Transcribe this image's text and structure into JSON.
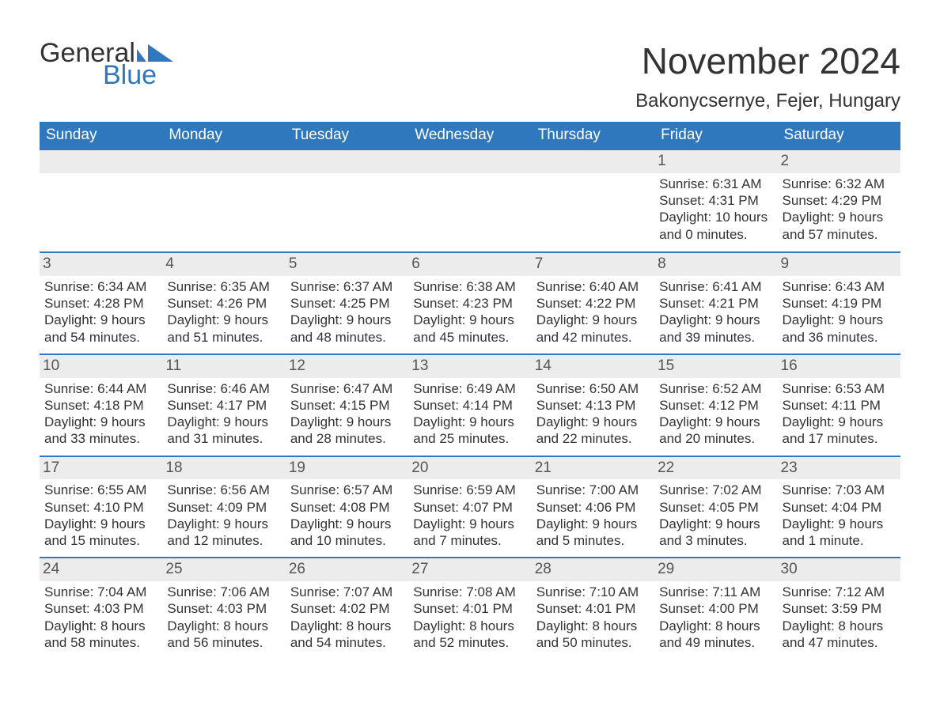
{
  "brand": {
    "line1": "General",
    "line2": "Blue"
  },
  "colors": {
    "accent": "#2f78bd",
    "header_text": "#ffffff",
    "daynum_bg": "#ececec",
    "text": "#333333",
    "background": "#ffffff"
  },
  "title": "November 2024",
  "location": "Bakonycsernye, Fejer, Hungary",
  "days_of_week": [
    "Sunday",
    "Monday",
    "Tuesday",
    "Wednesday",
    "Thursday",
    "Friday",
    "Saturday"
  ],
  "weeks": [
    [
      {
        "empty": true
      },
      {
        "empty": true
      },
      {
        "empty": true
      },
      {
        "empty": true
      },
      {
        "empty": true
      },
      {
        "n": "1",
        "sunrise": "Sunrise: 6:31 AM",
        "sunset": "Sunset: 4:31 PM",
        "d1": "Daylight: 10 hours",
        "d2": "and 0 minutes."
      },
      {
        "n": "2",
        "sunrise": "Sunrise: 6:32 AM",
        "sunset": "Sunset: 4:29 PM",
        "d1": "Daylight: 9 hours",
        "d2": "and 57 minutes."
      }
    ],
    [
      {
        "n": "3",
        "sunrise": "Sunrise: 6:34 AM",
        "sunset": "Sunset: 4:28 PM",
        "d1": "Daylight: 9 hours",
        "d2": "and 54 minutes."
      },
      {
        "n": "4",
        "sunrise": "Sunrise: 6:35 AM",
        "sunset": "Sunset: 4:26 PM",
        "d1": "Daylight: 9 hours",
        "d2": "and 51 minutes."
      },
      {
        "n": "5",
        "sunrise": "Sunrise: 6:37 AM",
        "sunset": "Sunset: 4:25 PM",
        "d1": "Daylight: 9 hours",
        "d2": "and 48 minutes."
      },
      {
        "n": "6",
        "sunrise": "Sunrise: 6:38 AM",
        "sunset": "Sunset: 4:23 PM",
        "d1": "Daylight: 9 hours",
        "d2": "and 45 minutes."
      },
      {
        "n": "7",
        "sunrise": "Sunrise: 6:40 AM",
        "sunset": "Sunset: 4:22 PM",
        "d1": "Daylight: 9 hours",
        "d2": "and 42 minutes."
      },
      {
        "n": "8",
        "sunrise": "Sunrise: 6:41 AM",
        "sunset": "Sunset: 4:21 PM",
        "d1": "Daylight: 9 hours",
        "d2": "and 39 minutes."
      },
      {
        "n": "9",
        "sunrise": "Sunrise: 6:43 AM",
        "sunset": "Sunset: 4:19 PM",
        "d1": "Daylight: 9 hours",
        "d2": "and 36 minutes."
      }
    ],
    [
      {
        "n": "10",
        "sunrise": "Sunrise: 6:44 AM",
        "sunset": "Sunset: 4:18 PM",
        "d1": "Daylight: 9 hours",
        "d2": "and 33 minutes."
      },
      {
        "n": "11",
        "sunrise": "Sunrise: 6:46 AM",
        "sunset": "Sunset: 4:17 PM",
        "d1": "Daylight: 9 hours",
        "d2": "and 31 minutes."
      },
      {
        "n": "12",
        "sunrise": "Sunrise: 6:47 AM",
        "sunset": "Sunset: 4:15 PM",
        "d1": "Daylight: 9 hours",
        "d2": "and 28 minutes."
      },
      {
        "n": "13",
        "sunrise": "Sunrise: 6:49 AM",
        "sunset": "Sunset: 4:14 PM",
        "d1": "Daylight: 9 hours",
        "d2": "and 25 minutes."
      },
      {
        "n": "14",
        "sunrise": "Sunrise: 6:50 AM",
        "sunset": "Sunset: 4:13 PM",
        "d1": "Daylight: 9 hours",
        "d2": "and 22 minutes."
      },
      {
        "n": "15",
        "sunrise": "Sunrise: 6:52 AM",
        "sunset": "Sunset: 4:12 PM",
        "d1": "Daylight: 9 hours",
        "d2": "and 20 minutes."
      },
      {
        "n": "16",
        "sunrise": "Sunrise: 6:53 AM",
        "sunset": "Sunset: 4:11 PM",
        "d1": "Daylight: 9 hours",
        "d2": "and 17 minutes."
      }
    ],
    [
      {
        "n": "17",
        "sunrise": "Sunrise: 6:55 AM",
        "sunset": "Sunset: 4:10 PM",
        "d1": "Daylight: 9 hours",
        "d2": "and 15 minutes."
      },
      {
        "n": "18",
        "sunrise": "Sunrise: 6:56 AM",
        "sunset": "Sunset: 4:09 PM",
        "d1": "Daylight: 9 hours",
        "d2": "and 12 minutes."
      },
      {
        "n": "19",
        "sunrise": "Sunrise: 6:57 AM",
        "sunset": "Sunset: 4:08 PM",
        "d1": "Daylight: 9 hours",
        "d2": "and 10 minutes."
      },
      {
        "n": "20",
        "sunrise": "Sunrise: 6:59 AM",
        "sunset": "Sunset: 4:07 PM",
        "d1": "Daylight: 9 hours",
        "d2": "and 7 minutes."
      },
      {
        "n": "21",
        "sunrise": "Sunrise: 7:00 AM",
        "sunset": "Sunset: 4:06 PM",
        "d1": "Daylight: 9 hours",
        "d2": "and 5 minutes."
      },
      {
        "n": "22",
        "sunrise": "Sunrise: 7:02 AM",
        "sunset": "Sunset: 4:05 PM",
        "d1": "Daylight: 9 hours",
        "d2": "and 3 minutes."
      },
      {
        "n": "23",
        "sunrise": "Sunrise: 7:03 AM",
        "sunset": "Sunset: 4:04 PM",
        "d1": "Daylight: 9 hours",
        "d2": "and 1 minute."
      }
    ],
    [
      {
        "n": "24",
        "sunrise": "Sunrise: 7:04 AM",
        "sunset": "Sunset: 4:03 PM",
        "d1": "Daylight: 8 hours",
        "d2": "and 58 minutes."
      },
      {
        "n": "25",
        "sunrise": "Sunrise: 7:06 AM",
        "sunset": "Sunset: 4:03 PM",
        "d1": "Daylight: 8 hours",
        "d2": "and 56 minutes."
      },
      {
        "n": "26",
        "sunrise": "Sunrise: 7:07 AM",
        "sunset": "Sunset: 4:02 PM",
        "d1": "Daylight: 8 hours",
        "d2": "and 54 minutes."
      },
      {
        "n": "27",
        "sunrise": "Sunrise: 7:08 AM",
        "sunset": "Sunset: 4:01 PM",
        "d1": "Daylight: 8 hours",
        "d2": "and 52 minutes."
      },
      {
        "n": "28",
        "sunrise": "Sunrise: 7:10 AM",
        "sunset": "Sunset: 4:01 PM",
        "d1": "Daylight: 8 hours",
        "d2": "and 50 minutes."
      },
      {
        "n": "29",
        "sunrise": "Sunrise: 7:11 AM",
        "sunset": "Sunset: 4:00 PM",
        "d1": "Daylight: 8 hours",
        "d2": "and 49 minutes."
      },
      {
        "n": "30",
        "sunrise": "Sunrise: 7:12 AM",
        "sunset": "Sunset: 3:59 PM",
        "d1": "Daylight: 8 hours",
        "d2": "and 47 minutes."
      }
    ]
  ]
}
